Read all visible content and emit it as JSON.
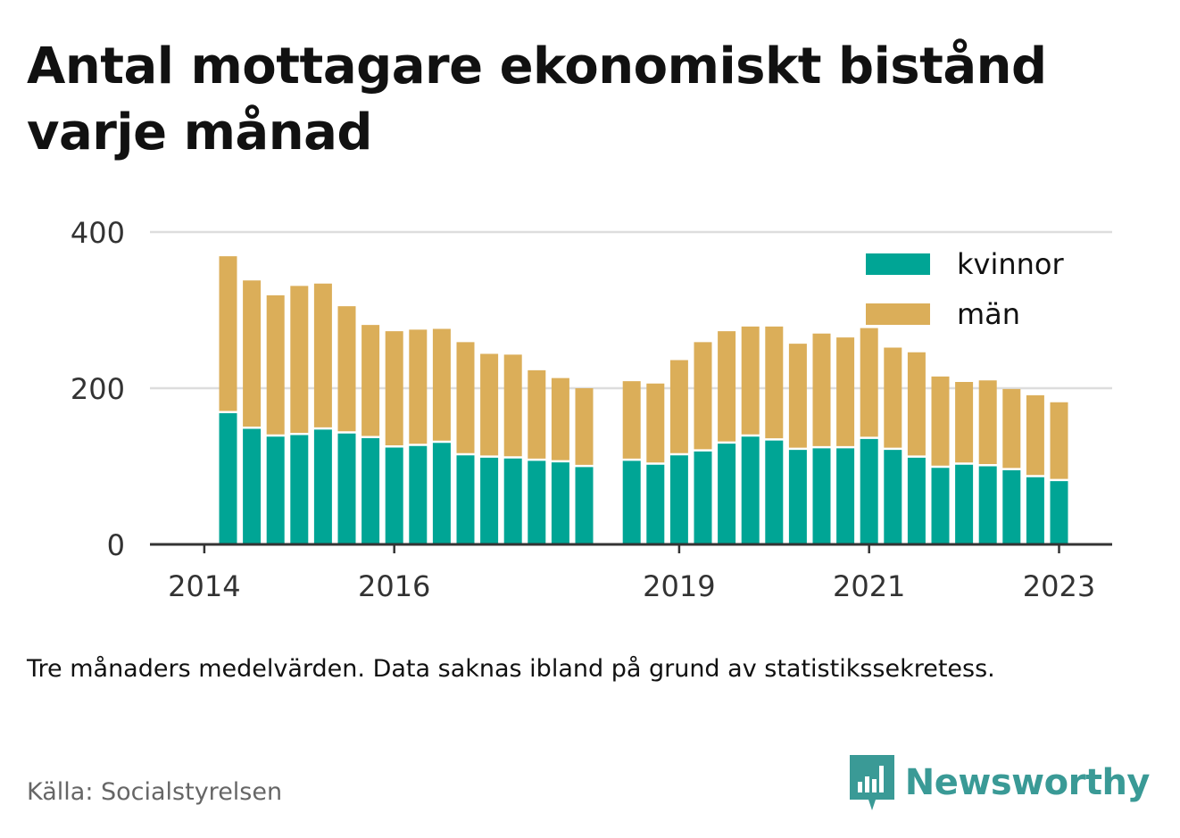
{
  "title": "Antal mottagare ekonomiskt bistånd varje månad",
  "note": "Tre månaders medelvärden. Data saknas ibland på grund av statistikssekretess.",
  "source": "Källa: Socialstyrelsen",
  "brand": {
    "name": "Newsworthy",
    "color": "#3a9a96"
  },
  "colors": {
    "kvinnor": "#00a595",
    "man": "#dbae59",
    "grid": "#dddddd",
    "axis": "#333333"
  },
  "chart_data": {
    "type": "bar",
    "stacked": true,
    "ylim": [
      0,
      400
    ],
    "yticks": [
      0,
      200,
      400
    ],
    "xticks": [
      "2014",
      "2016",
      "2019",
      "2021",
      "2023"
    ],
    "grid": true,
    "legend_position": "top-right",
    "categories": [
      "2014-Q2",
      "2014-Q3",
      "2014-Q4",
      "2015-Q1",
      "2015-Q2",
      "2015-Q3",
      "2015-Q4",
      "2016-Q1",
      "2016-Q2",
      "2016-Q3",
      "2016-Q4",
      "2017-Q1",
      "2017-Q2",
      "2017-Q3",
      "2017-Q4",
      "2018-Q1",
      "2018-Q3",
      "2018-Q4",
      "2019-Q1",
      "2019-Q2",
      "2019-Q3",
      "2019-Q4",
      "2020-Q1",
      "2020-Q2",
      "2020-Q3",
      "2020-Q4",
      "2021-Q1",
      "2021-Q2",
      "2021-Q3",
      "2021-Q4",
      "2022-Q1",
      "2022-Q2",
      "2022-Q3",
      "2022-Q4",
      "2023-Q1",
      "2023-Q2"
    ],
    "series": [
      {
        "name": "kvinnor",
        "values": [
          168,
          148,
          138,
          140,
          147,
          142,
          136,
          124,
          126,
          130,
          114,
          111,
          110,
          107,
          105,
          99,
          107,
          102,
          114,
          119,
          129,
          138,
          133,
          121,
          123,
          123,
          135,
          121,
          111,
          98,
          102,
          100,
          95,
          86,
          81,
          null
        ]
      },
      {
        "name": "män",
        "values": [
          201,
          190,
          181,
          191,
          187,
          163,
          145,
          149,
          149,
          146,
          145,
          133,
          133,
          116,
          108,
          101,
          102,
          104,
          122,
          140,
          144,
          141,
          146,
          136,
          147,
          142,
          142,
          131,
          135,
          117,
          106,
          110,
          104,
          105,
          101,
          null
        ]
      }
    ]
  }
}
